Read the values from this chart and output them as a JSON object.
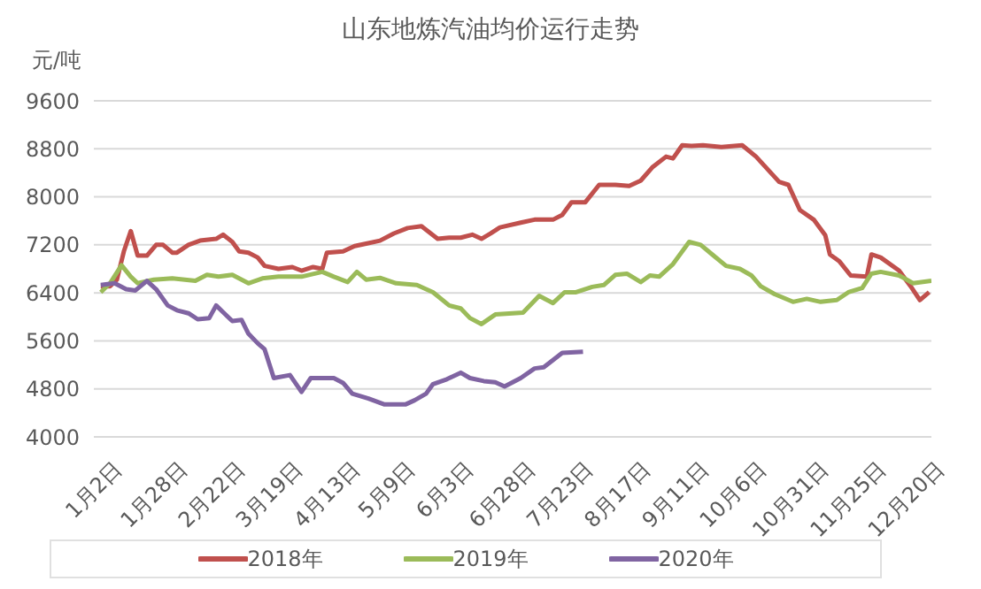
{
  "chart_data": {
    "type": "line",
    "title": "山东地炼汽油均价运行走势",
    "ylabel": "元/吨",
    "xlim": [
      "--01-02",
      "--12-31"
    ],
    "xticks": [
      {
        "value": "--01-02",
        "label": "1月2日"
      },
      {
        "value": "--01-28",
        "label": "1月28日"
      },
      {
        "value": "--02-22",
        "label": "2月22日"
      },
      {
        "value": "--03-19",
        "label": "3月19日"
      },
      {
        "value": "--04-13",
        "label": "4月13日"
      },
      {
        "value": "--05-09",
        "label": "5月9日"
      },
      {
        "value": "--06-03",
        "label": "6月3日"
      },
      {
        "value": "--06-28",
        "label": "6月28日"
      },
      {
        "value": "--07-23",
        "label": "7月23日"
      },
      {
        "value": "--08-17",
        "label": "8月17日"
      },
      {
        "value": "--09-11",
        "label": "9月11日"
      },
      {
        "value": "--10-06",
        "label": "10月6日"
      },
      {
        "value": "--10-31",
        "label": "10月31日"
      },
      {
        "value": "--11-25",
        "label": "11月25日"
      },
      {
        "value": "--12-20",
        "label": "12月20日"
      }
    ],
    "ylim": [
      4000,
      9600
    ],
    "yticks": [
      4000,
      4800,
      5600,
      6400,
      7200,
      8000,
      8800,
      9600
    ],
    "grid": "y",
    "legend": "bottom",
    "marker": "none",
    "line_style": "solid",
    "series": [
      {
        "name": "2018年",
        "color": "#c0504d",
        "x": [
          "--01-05",
          "--01-09",
          "--01-12",
          "--01-15",
          "--01-18",
          "--01-21",
          "--01-25",
          "--01-29",
          "--02-01",
          "--02-05",
          "--02-07",
          "--02-12",
          "--02-17",
          "--02-24",
          "--02-27",
          "--03-03",
          "--03-06",
          "--03-10",
          "--03-14",
          "--03-17",
          "--03-23",
          "--03-29",
          "--04-02",
          "--04-07",
          "--04-11",
          "--04-13",
          "--04-20",
          "--04-25",
          "--04-30",
          "--05-06",
          "--05-12",
          "--05-18",
          "--05-24",
          "--05-31",
          "--06-05",
          "--06-10",
          "--06-15",
          "--06-19",
          "--06-23",
          "--06-27",
          "--07-06",
          "--07-12",
          "--07-20",
          "--07-24",
          "--07-28",
          "--08-03",
          "--08-09",
          "--08-16",
          "--08-22",
          "--08-27",
          "--09-01",
          "--09-07",
          "--09-10",
          "--09-14",
          "--09-18",
          "--09-23",
          "--10-01",
          "--10-10",
          "--10-16",
          "--10-21",
          "--10-26",
          "--10-30",
          "--11-04",
          "--11-10",
          "--11-15",
          "--11-17",
          "--11-21",
          "--11-26",
          "--12-03",
          "--12-05",
          "--12-09",
          "--12-17",
          "--12-22",
          "--12-26",
          "--12-30"
        ],
        "values": [
          6510,
          6510,
          6620,
          7090,
          7430,
          7020,
          7020,
          7200,
          7200,
          7070,
          7070,
          7200,
          7270,
          7300,
          7370,
          7250,
          7090,
          7070,
          6990,
          6850,
          6800,
          6830,
          6770,
          6830,
          6800,
          7070,
          7090,
          7180,
          7220,
          7270,
          7390,
          7480,
          7510,
          7300,
          7320,
          7320,
          7370,
          7300,
          7390,
          7490,
          7570,
          7620,
          7620,
          7700,
          7910,
          7910,
          8200,
          8200,
          8180,
          8270,
          8490,
          8670,
          8640,
          8860,
          8850,
          8860,
          8830,
          8860,
          8670,
          8460,
          8250,
          8200,
          7780,
          7620,
          7360,
          7040,
          6930,
          6690,
          6670,
          7040,
          6990,
          6770,
          6510,
          6280,
          6410
        ]
      },
      {
        "name": "2019年",
        "color": "#9bbb59",
        "x": [
          "--01-05",
          "--01-09",
          "--01-14",
          "--01-18",
          "--01-21",
          "--01-28",
          "--02-05",
          "--02-15",
          "--02-20",
          "--02-25",
          "--03-03",
          "--03-10",
          "--03-16",
          "--03-23",
          "--04-02",
          "--04-11",
          "--04-16",
          "--04-22",
          "--04-26",
          "--04-30",
          "--05-06",
          "--05-13",
          "--05-22",
          "--05-29",
          "--06-05",
          "--06-10",
          "--06-14",
          "--06-19",
          "--06-25",
          "--07-07",
          "--07-14",
          "--07-20",
          "--07-25",
          "--07-30",
          "--08-06",
          "--08-11",
          "--08-16",
          "--08-21",
          "--08-27",
          "--08-31",
          "--09-04",
          "--09-10",
          "--09-17",
          "--09-22",
          "--09-27",
          "--10-03",
          "--10-09",
          "--10-14",
          "--10-18",
          "--10-24",
          "--11-01",
          "--11-07",
          "--11-13",
          "--11-20",
          "--11-25",
          "--12-01",
          "--12-05",
          "--12-09",
          "--12-17",
          "--12-23",
          "--12-31"
        ],
        "values": [
          6410,
          6560,
          6860,
          6670,
          6560,
          6620,
          6640,
          6600,
          6700,
          6670,
          6700,
          6560,
          6640,
          6670,
          6670,
          6750,
          6670,
          6580,
          6750,
          6620,
          6650,
          6560,
          6530,
          6410,
          6190,
          6140,
          5980,
          5880,
          6040,
          6070,
          6350,
          6230,
          6410,
          6410,
          6500,
          6530,
          6700,
          6720,
          6580,
          6690,
          6670,
          6880,
          7250,
          7200,
          7040,
          6850,
          6800,
          6690,
          6510,
          6380,
          6250,
          6300,
          6250,
          6280,
          6410,
          6480,
          6720,
          6750,
          6690,
          6560,
          6600
        ]
      },
      {
        "name": "2020年",
        "color": "#8064a2",
        "x": [
          "--01-05",
          "--01-11",
          "--01-16",
          "--01-20",
          "--01-25",
          "--01-29",
          "--02-03",
          "--02-07",
          "--02-12",
          "--02-16",
          "--02-21",
          "--02-24",
          "--02-28",
          "--03-03",
          "--03-07",
          "--03-10",
          "--03-14",
          "--03-17",
          "--03-21",
          "--03-28",
          "--04-02",
          "--04-06",
          "--04-11",
          "--04-16",
          "--04-20",
          "--04-24",
          "--05-01",
          "--05-08",
          "--05-17",
          "--05-21",
          "--05-26",
          "--05-29",
          "--06-04",
          "--06-10",
          "--06-14",
          "--06-20",
          "--06-25",
          "--06-29",
          "--07-06",
          "--07-12",
          "--07-16",
          "--07-24",
          "--08-02"
        ],
        "values": [
          6530,
          6560,
          6460,
          6440,
          6600,
          6460,
          6190,
          6110,
          6060,
          5960,
          5980,
          6190,
          6040,
          5930,
          5950,
          5720,
          5560,
          5460,
          4980,
          5030,
          4750,
          4980,
          4980,
          4980,
          4900,
          4720,
          4640,
          4540,
          4540,
          4610,
          4720,
          4880,
          4960,
          5070,
          4980,
          4930,
          4910,
          4840,
          4980,
          5140,
          5160,
          5400,
          5420
        ]
      }
    ]
  }
}
